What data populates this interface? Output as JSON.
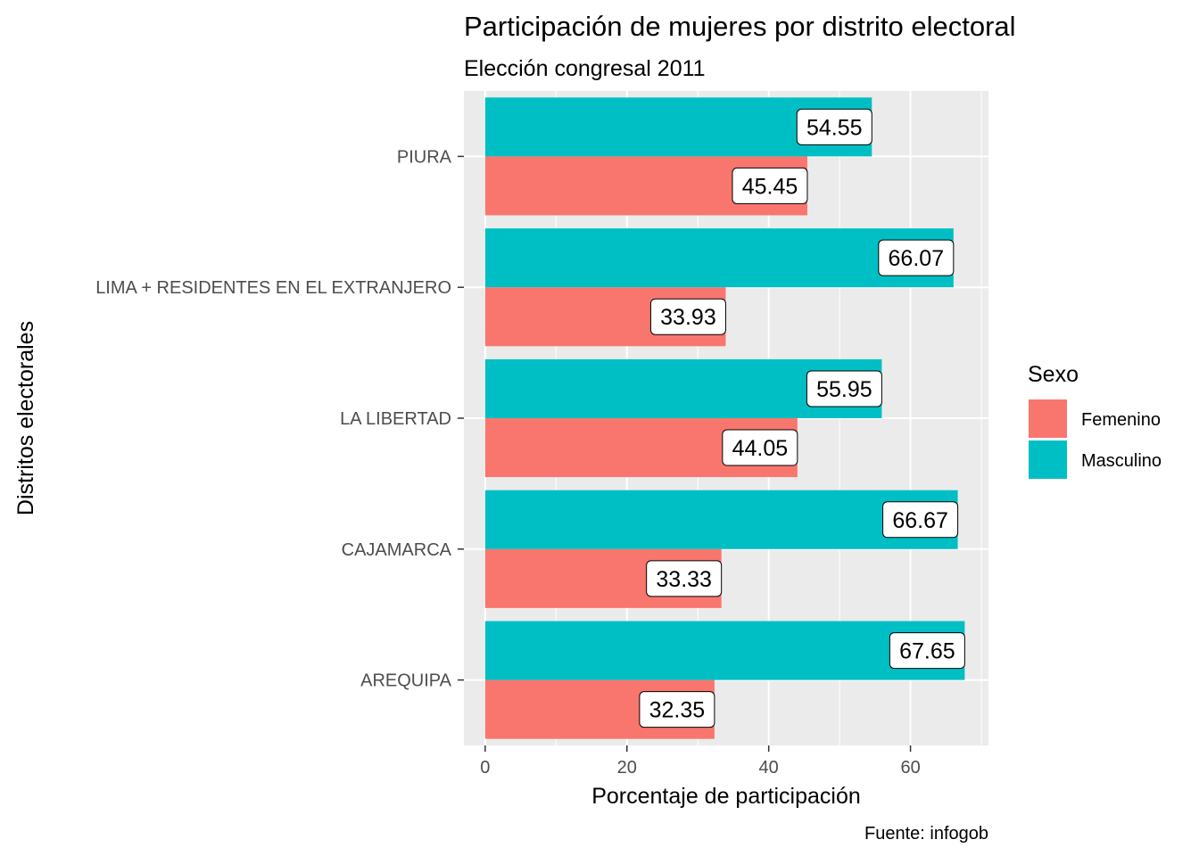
{
  "chart_data": {
    "type": "bar",
    "orientation": "horizontal",
    "title": "Participación de mujeres por distrito electoral",
    "subtitle": "Elección congresal 2011",
    "xlabel": "Porcentaje de participación",
    "ylabel": "Distritos electorales",
    "caption": "Fuente: infogob",
    "categories": [
      "AREQUIPA",
      "CAJAMARCA",
      "LA LIBERTAD",
      "LIMA + RESIDENTES EN EL EXTRANJERO",
      "PIURA"
    ],
    "series": [
      {
        "name": "Femenino",
        "color": "#F8766D",
        "values": [
          32.35,
          33.33,
          44.05,
          33.93,
          45.45
        ]
      },
      {
        "name": "Masculino",
        "color": "#00BFC4",
        "values": [
          67.65,
          66.67,
          55.95,
          66.07,
          54.55
        ]
      }
    ],
    "xlim": [
      -3,
      71
    ],
    "xticks": [
      0,
      20,
      40,
      60
    ],
    "grid": true,
    "legend": {
      "title": "Sexo",
      "position": "right"
    },
    "panel_background": "#EBEBEB"
  }
}
